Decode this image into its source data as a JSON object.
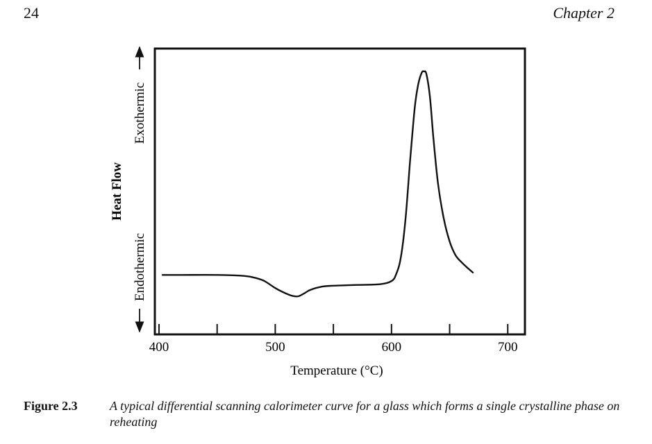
{
  "header": {
    "page_number": "24",
    "chapter": "Chapter 2"
  },
  "caption": {
    "label": "Figure 2.3",
    "text": "A typical differential scanning calorimeter curve for a glass which forms a single crystalline phase on reheating"
  },
  "chart_data": {
    "type": "line",
    "xlabel": "Temperature (°C)",
    "ylabel": "Heat Flow",
    "y_direction_labels": {
      "top": "Exothermic",
      "bottom": "Endothermic"
    },
    "xlim": [
      400,
      710
    ],
    "x_ticks": [
      400,
      450,
      500,
      550,
      600,
      650,
      700
    ],
    "x_tick_labels": [
      "400",
      "500",
      "600",
      "700"
    ],
    "y_units": "arbitrary",
    "ylim": [
      0,
      100
    ],
    "grid": false,
    "series": [
      {
        "x": [
          403,
          420,
          450,
          470,
          480,
          490,
          500,
          508,
          515,
          520,
          525,
          530,
          540,
          550,
          570,
          590,
          600,
          604,
          608,
          612,
          616,
          620,
          623,
          626,
          628,
          630,
          633,
          636,
          640,
          645,
          650,
          655,
          660,
          665,
          670
        ],
        "y": [
          15,
          15,
          15,
          14.7,
          14.1,
          12.6,
          9.5,
          7.5,
          6.2,
          6.1,
          7.3,
          8.7,
          10.1,
          10.5,
          10.8,
          11.1,
          12.4,
          15.3,
          22.2,
          38.0,
          62.7,
          84.9,
          94.6,
          99.5,
          100,
          98.9,
          89.6,
          72.4,
          53.2,
          38.4,
          29.0,
          23.3,
          20.4,
          18.1,
          16.0
        ]
      }
    ]
  }
}
